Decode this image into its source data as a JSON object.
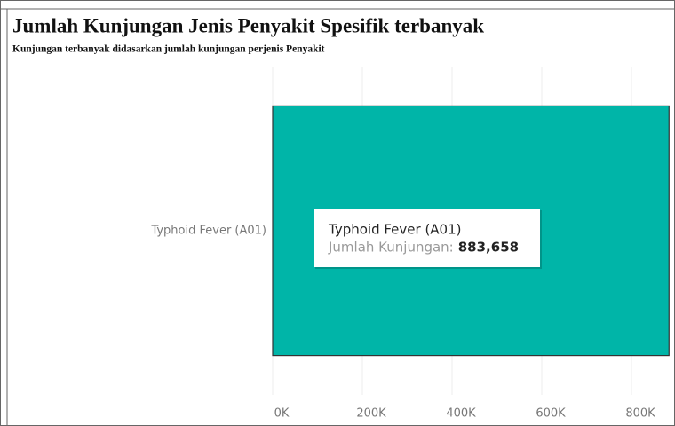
{
  "chart_data": {
    "type": "bar",
    "orientation": "horizontal",
    "title": "Jumlah Kunjungan Jenis Penyakit Spesifik terbanyak",
    "subtitle": "Kunjungan terbanyak didasarkan jumlah kunjungan perjenis Penyakit",
    "categories": [
      "Typhoid Fever (A01)"
    ],
    "values": [
      883658
    ],
    "value_labels": [
      "883,658"
    ],
    "tooltip_label": "Jumlah Kunjungan:",
    "color": "#00b5a8",
    "xlim": [
      0,
      897000
    ],
    "xticks": [
      {
        "value": 0,
        "label": "0K"
      },
      {
        "value": 200000,
        "label": "200K"
      },
      {
        "value": 400000,
        "label": "400K"
      },
      {
        "value": 600000,
        "label": "600K"
      },
      {
        "value": 800000,
        "label": "800K"
      }
    ],
    "grid": true
  }
}
